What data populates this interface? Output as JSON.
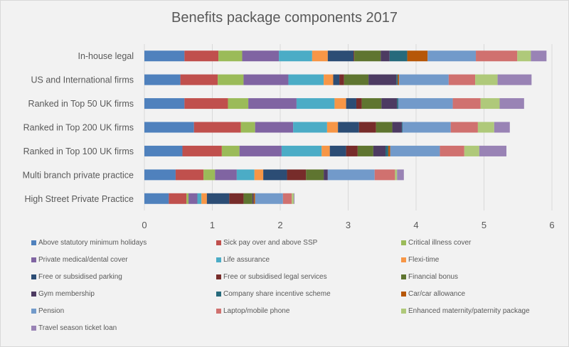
{
  "chart_data": {
    "type": "bar",
    "orientation": "horizontal",
    "stacked": true,
    "title": "Benefits package components 2017",
    "xlabel": "",
    "ylabel": "",
    "xlim": [
      0,
      6
    ],
    "xticks": [
      "0",
      "1",
      "2",
      "3",
      "4",
      "5",
      "6"
    ],
    "grid": true,
    "legend_position": "bottom",
    "categories": [
      "In-house legal",
      "US and International firms",
      "Ranked in Top 50 UK firms",
      "Ranked in Top 200 UK firms",
      "Ranked in Top 100 UK firms",
      "Multi branch private practice",
      "High Street Private Practice"
    ],
    "series": [
      {
        "name": "Above statutory minimum holidays",
        "color": "#4f81bd",
        "values": [
          0.59,
          0.53,
          0.59,
          0.73,
          0.56,
          0.46,
          0.36
        ]
      },
      {
        "name": "Sick pay over and above SSP",
        "color": "#c0504d",
        "values": [
          0.5,
          0.55,
          0.64,
          0.69,
          0.58,
          0.41,
          0.26
        ]
      },
      {
        "name": "Critical illness cover",
        "color": "#9bbb59",
        "values": [
          0.35,
          0.38,
          0.3,
          0.21,
          0.26,
          0.17,
          0.03
        ]
      },
      {
        "name": "Private medical/dental cover",
        "color": "#8064a2",
        "values": [
          0.54,
          0.66,
          0.71,
          0.56,
          0.62,
          0.32,
          0.13
        ]
      },
      {
        "name": "Life assurance",
        "color": "#4bacc6",
        "values": [
          0.49,
          0.52,
          0.56,
          0.5,
          0.59,
          0.26,
          0.06
        ]
      },
      {
        "name": "Flexi-time",
        "color": "#f79646",
        "values": [
          0.23,
          0.14,
          0.17,
          0.16,
          0.12,
          0.13,
          0.08
        ]
      },
      {
        "name": "Free or subsidised parking",
        "color": "#2c4d75",
        "values": [
          0.38,
          0.09,
          0.15,
          0.31,
          0.24,
          0.35,
          0.33
        ]
      },
      {
        "name": "Free or subsidised legal services",
        "color": "#772c2a",
        "values": [
          0.01,
          0.07,
          0.08,
          0.25,
          0.17,
          0.28,
          0.21
        ]
      },
      {
        "name": "Financial bonus",
        "color": "#5f7530",
        "values": [
          0.39,
          0.36,
          0.29,
          0.24,
          0.23,
          0.26,
          0.13
        ]
      },
      {
        "name": "Gym membership",
        "color": "#4d3b62",
        "values": [
          0.13,
          0.41,
          0.23,
          0.14,
          0.18,
          0.06,
          0.02
        ]
      },
      {
        "name": "Company share incentive scheme",
        "color": "#276a7c",
        "values": [
          0.26,
          0.02,
          0.02,
          0.01,
          0.04,
          0.0,
          0.0
        ]
      },
      {
        "name": "Car/car allowance",
        "color": "#b65708",
        "values": [
          0.3,
          0.02,
          0.0,
          0.0,
          0.03,
          0.0,
          0.02
        ]
      },
      {
        "name": "Pension",
        "color": "#729aca",
        "values": [
          0.71,
          0.73,
          0.8,
          0.71,
          0.73,
          0.69,
          0.41
        ]
      },
      {
        "name": "Laptop/mobile phone",
        "color": "#d0716f",
        "values": [
          0.61,
          0.39,
          0.41,
          0.4,
          0.36,
          0.3,
          0.13
        ]
      },
      {
        "name": "Enhanced maternity/paternity package",
        "color": "#afc97a",
        "values": [
          0.2,
          0.33,
          0.28,
          0.24,
          0.22,
          0.03,
          0.03
        ]
      },
      {
        "name": "Travel season ticket loan",
        "color": "#9983b5",
        "values": [
          0.23,
          0.5,
          0.36,
          0.23,
          0.4,
          0.1,
          0.01
        ]
      }
    ]
  }
}
